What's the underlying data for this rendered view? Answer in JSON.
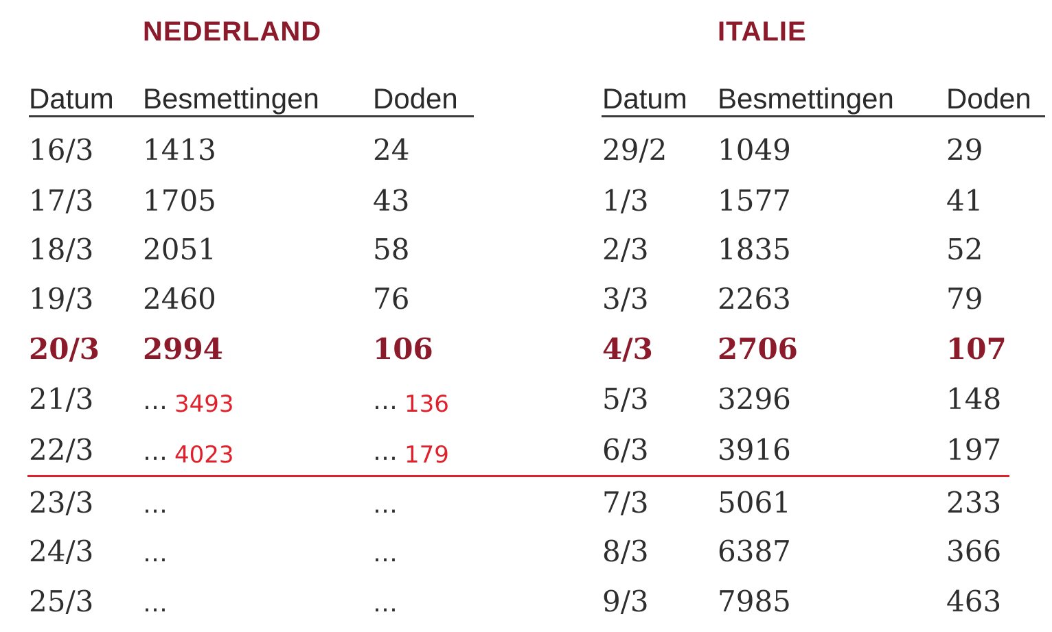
{
  "colors": {
    "accent": "#8b1a2b",
    "annotation": "#e0202a",
    "text": "#2e2e2e",
    "divider": "#e0202a"
  },
  "nederland": {
    "title": "NEDERLAND",
    "headers": [
      "Datum",
      "Besmettingen",
      "Doden"
    ]
  },
  "italie": {
    "title": "ITALIE",
    "headers": [
      "Datum",
      "Besmettingen",
      "Doden"
    ]
  },
  "rows": [
    {
      "nl_date": "16/3",
      "nl_infections": "1413",
      "nl_deaths": "24",
      "it_date": "29/2",
      "it_infections": "1049",
      "it_deaths": "29"
    },
    {
      "nl_date": "17/3",
      "nl_infections": "1705",
      "nl_deaths": "43",
      "it_date": "1/3",
      "it_infections": "1577",
      "it_deaths": "41"
    },
    {
      "nl_date": "18/3",
      "nl_infections": "2051",
      "nl_deaths": "58",
      "it_date": "2/3",
      "it_infections": "1835",
      "it_deaths": "52"
    },
    {
      "nl_date": "19/3",
      "nl_infections": "2460",
      "nl_deaths": "76",
      "it_date": "3/3",
      "it_infections": "2263",
      "it_deaths": "79"
    },
    {
      "nl_date": "20/3",
      "nl_infections": "2994",
      "nl_deaths": "106",
      "it_date": "4/3",
      "it_infections": "2706",
      "it_deaths": "107"
    },
    {
      "nl_date": "21/3",
      "nl_infections": "...",
      "nl_infections_note": "3493",
      "nl_deaths": "...",
      "nl_deaths_note": "136",
      "it_date": "5/3",
      "it_infections": "3296",
      "it_deaths": "148"
    },
    {
      "nl_date": "22/3",
      "nl_infections": "...",
      "nl_infections_note": "4023",
      "nl_deaths": "...",
      "nl_deaths_note": "179",
      "it_date": "6/3",
      "it_infections": "3916",
      "it_deaths": "197"
    },
    {
      "nl_date": "23/3",
      "nl_infections": "...",
      "nl_deaths": "...",
      "it_date": "7/3",
      "it_infections": "5061",
      "it_deaths": "233"
    },
    {
      "nl_date": "24/3",
      "nl_infections": "...",
      "nl_deaths": "...",
      "it_date": "8/3",
      "it_infections": "6387",
      "it_deaths": "366"
    },
    {
      "nl_date": "25/3",
      "nl_infections": "...",
      "nl_deaths": "...",
      "it_date": "9/3",
      "it_infections": "7985",
      "it_deaths": "463"
    }
  ]
}
